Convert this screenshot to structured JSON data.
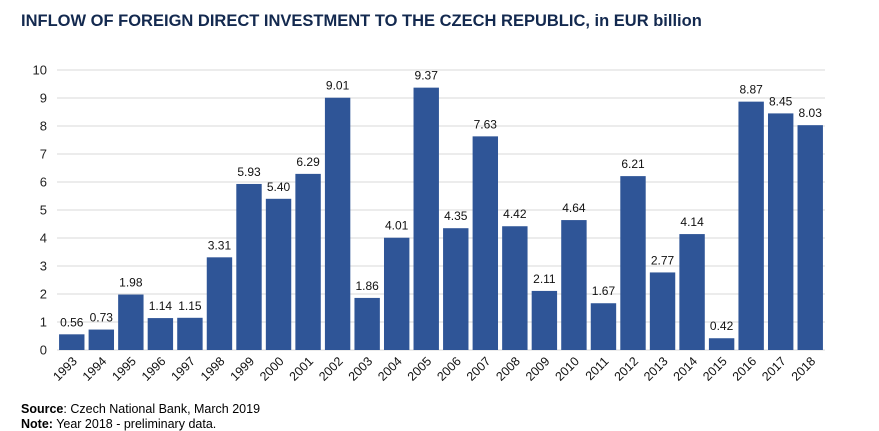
{
  "chart_data": {
    "type": "bar",
    "title": "INFLOW OF FOREIGN DIRECT INVESTMENT TO THE CZECH REPUBLIC, in EUR billion",
    "xlabel": "",
    "ylabel": "",
    "ylim": [
      0,
      10
    ],
    "yticks": [
      0,
      1,
      2,
      3,
      4,
      5,
      6,
      7,
      8,
      9,
      10
    ],
    "grid": true,
    "categories": [
      "1993",
      "1994",
      "1995",
      "1996",
      "1997",
      "1998",
      "1999",
      "2000",
      "2001",
      "2002",
      "2003",
      "2004",
      "2005",
      "2006",
      "2007",
      "2008",
      "2009",
      "2010",
      "2011",
      "2012",
      "2013",
      "2014",
      "2015",
      "2016",
      "2017",
      "2018"
    ],
    "values": [
      0.56,
      0.73,
      1.98,
      1.14,
      1.15,
      3.31,
      5.93,
      5.4,
      6.29,
      9.01,
      1.86,
      4.01,
      9.37,
      4.35,
      7.63,
      4.42,
      2.11,
      4.64,
      1.67,
      6.21,
      2.77,
      4.14,
      0.42,
      8.87,
      8.45,
      8.03
    ],
    "labels": [
      "0.56",
      "0.73",
      "1.98",
      "1.14",
      "1.15",
      "3.31",
      "5.93",
      "5.40",
      "6.29",
      "9.01",
      "1.86",
      "4.01",
      "9.37",
      "4.35",
      "7.63",
      "4.42",
      "2.11",
      "4.64",
      "1.67",
      "6.21",
      "2.77",
      "4.14",
      "0.42",
      "8.87",
      "8.45",
      "8.03"
    ],
    "bar_color": "#2f5597"
  },
  "footer": {
    "source_label": "Source",
    "source_text": ": Czech National Bank, March 2019",
    "note_label": "Note:",
    "note_text": " Year 2018 - preliminary data."
  }
}
